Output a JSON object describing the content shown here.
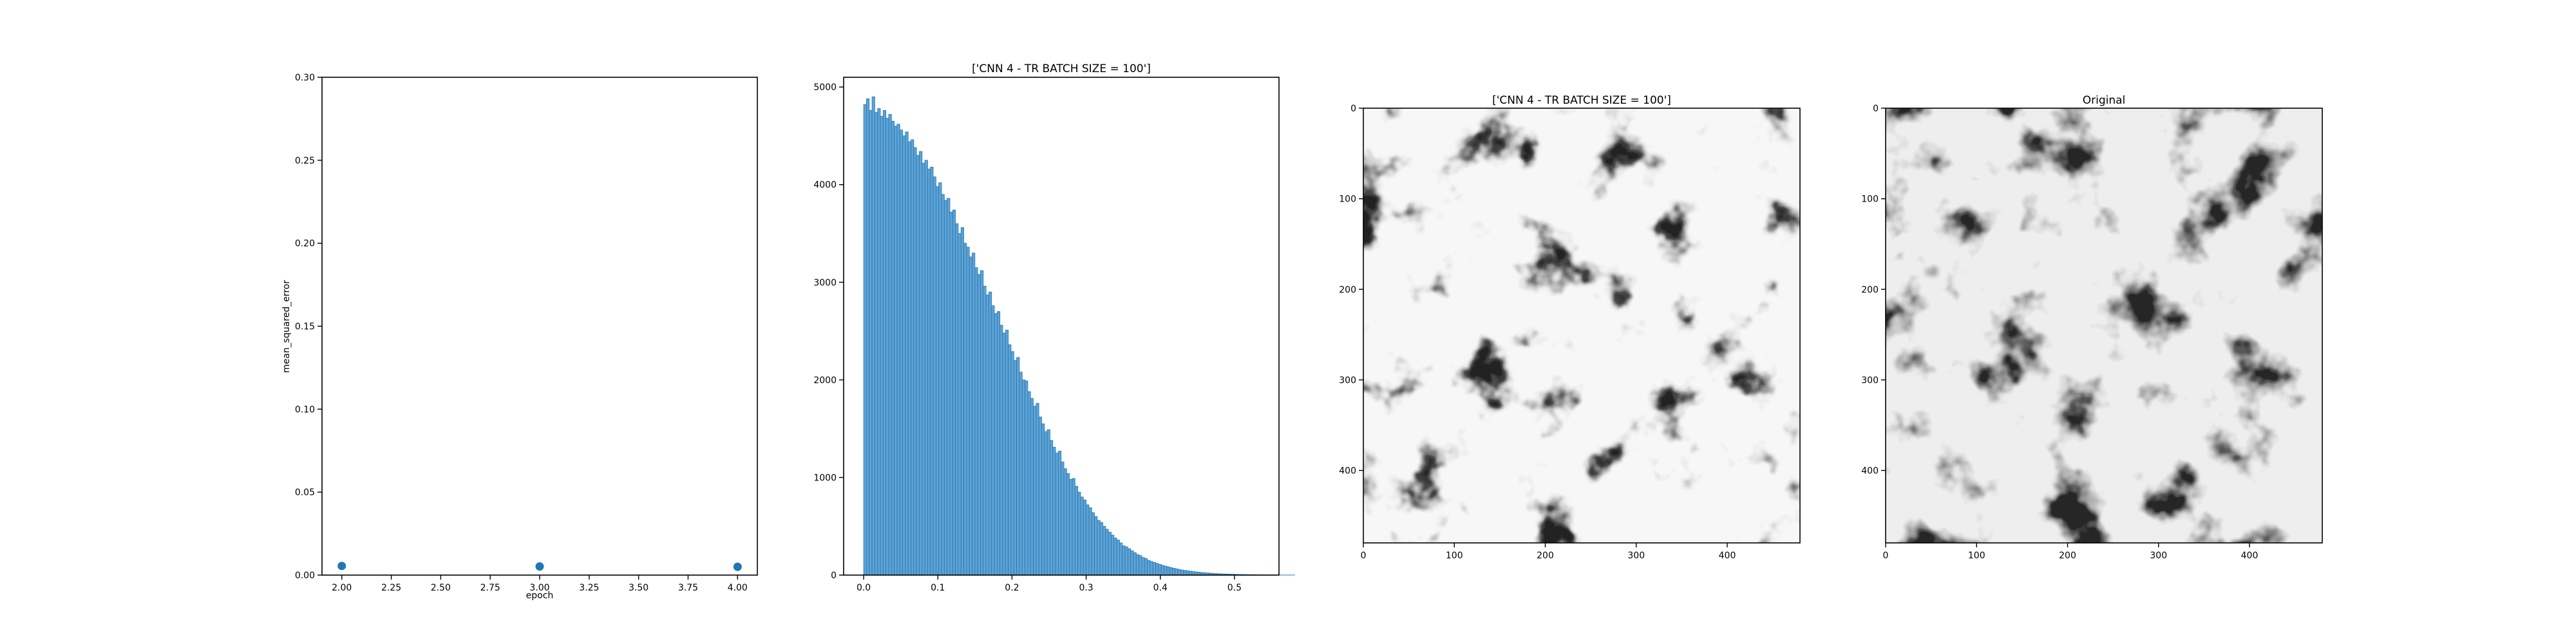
{
  "chart_data": [
    {
      "type": "scatter",
      "title": "",
      "xlabel": "epoch",
      "ylabel": "mean_squared_error",
      "xlim": [
        1.9,
        4.1
      ],
      "ylim": [
        0.0,
        0.3
      ],
      "xticks": [
        "2.00",
        "2.25",
        "2.50",
        "2.75",
        "3.00",
        "3.25",
        "3.50",
        "3.75",
        "4.00"
      ],
      "yticks": [
        "0.00",
        "0.05",
        "0.10",
        "0.15",
        "0.20",
        "0.25",
        "0.30"
      ],
      "grid": false,
      "color": "#1f77b4",
      "series": [
        {
          "x": [
            2,
            3,
            4
          ],
          "y": [
            0.0055,
            0.0052,
            0.005
          ]
        }
      ]
    },
    {
      "type": "bar",
      "title": "['CNN 4 - TR BATCH SIZE = 100']",
      "xlabel": "",
      "ylabel": "",
      "xlim": [
        -0.027,
        0.56
      ],
      "ylim": [
        0,
        5100
      ],
      "xticks": [
        "0.0",
        "0.1",
        "0.2",
        "0.3",
        "0.4",
        "0.5"
      ],
      "yticks": [
        "0",
        "1000",
        "2000",
        "3000",
        "4000",
        "5000"
      ],
      "grid": false,
      "color": "#5fa2d3",
      "edge_color": "#1f77b4",
      "bin_width": 0.00375,
      "bin_start": 0.0,
      "note_values": "counts per bin, starting at x=0.0"
    },
    {
      "type": "heatmap",
      "title": "['CNN 4 - TR BATCH SIZE = 100']",
      "colormap": "gray",
      "xlim": [
        0,
        480
      ],
      "ylim": [
        480,
        0
      ],
      "xticks": [
        "0",
        "100",
        "200",
        "300",
        "400"
      ],
      "yticks": [
        "0",
        "100",
        "200",
        "300",
        "400"
      ]
    },
    {
      "type": "heatmap",
      "title": "Original",
      "colormap": "gray",
      "xlim": [
        0,
        480
      ],
      "ylim": [
        480,
        0
      ],
      "xticks": [
        "0",
        "100",
        "200",
        "300",
        "400"
      ],
      "yticks": [
        "0",
        "100",
        "200",
        "300",
        "400"
      ]
    }
  ],
  "hist_counts": [
    4820,
    4880,
    4760,
    4900,
    4740,
    4780,
    4700,
    4760,
    4680,
    4720,
    4650,
    4600,
    4620,
    4560,
    4500,
    4540,
    4440,
    4460,
    4380,
    4300,
    4340,
    4220,
    4250,
    4160,
    4180,
    4080,
    3980,
    4020,
    3900,
    3840,
    3860,
    3720,
    3740,
    3600,
    3500,
    3560,
    3400,
    3360,
    3260,
    3300,
    3150,
    3080,
    3120,
    2960,
    2870,
    2900,
    2760,
    2680,
    2700,
    2560,
    2480,
    2510,
    2360,
    2290,
    2200,
    2230,
    2080,
    2000,
    1990,
    1880,
    1810,
    1730,
    1760,
    1620,
    1550,
    1470,
    1490,
    1380,
    1310,
    1250,
    1270,
    1160,
    1090,
    1040,
    980,
    990,
    910,
    850,
    800,
    770,
    720,
    690,
    640,
    600,
    560,
    540,
    500,
    470,
    440,
    410,
    380,
    360,
    330,
    300,
    290,
    270,
    250,
    230,
    210,
    200,
    180,
    170,
    150,
    140,
    130,
    120,
    110,
    100,
    92,
    85,
    78,
    70,
    64,
    58,
    52,
    48,
    44,
    40,
    36,
    33,
    30,
    27,
    24,
    22,
    20,
    18,
    16,
    14,
    13,
    12,
    11,
    10,
    9,
    8,
    7,
    6,
    6,
    5,
    5,
    4,
    4,
    3,
    3,
    3,
    2,
    2,
    2,
    2,
    1,
    1,
    1,
    1,
    1,
    1,
    1
  ]
}
